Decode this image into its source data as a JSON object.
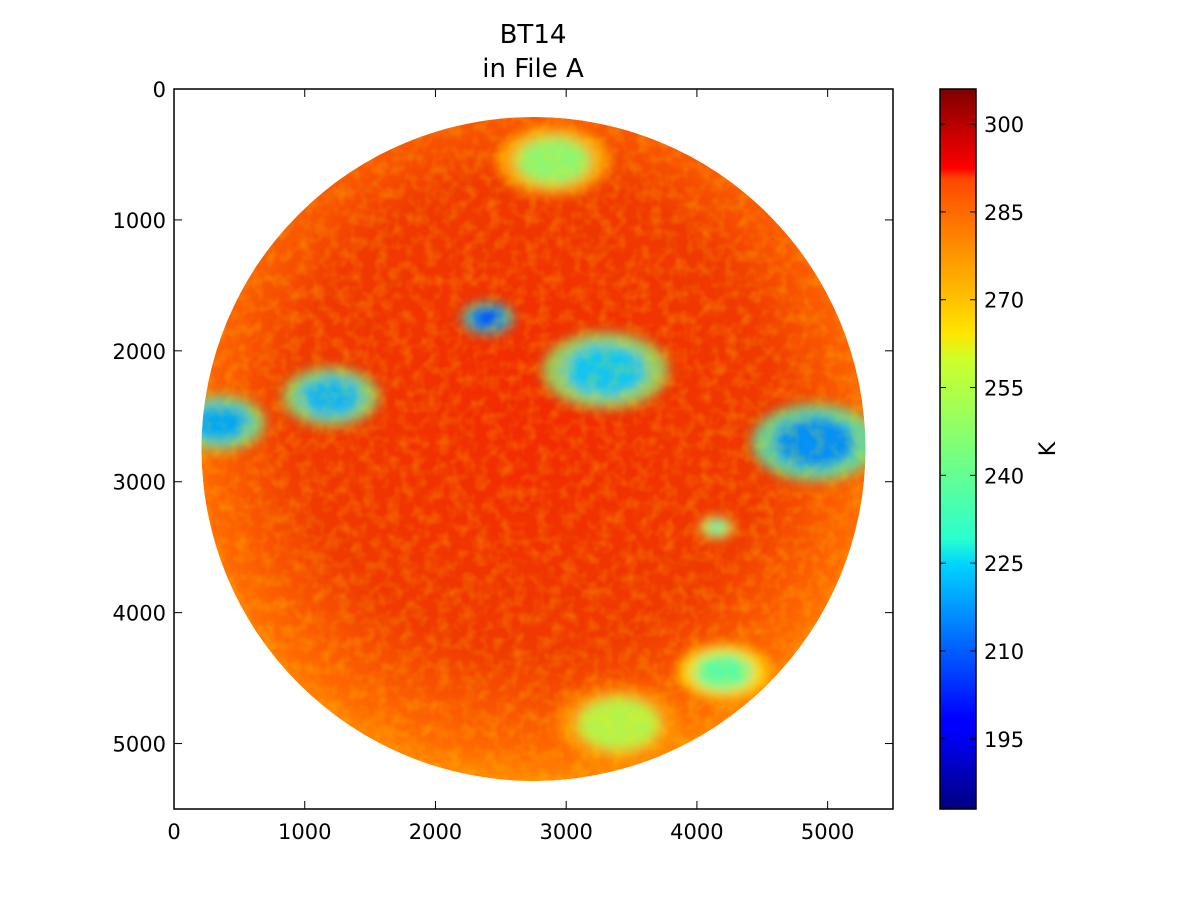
{
  "chart_data": {
    "type": "heatmap",
    "title": "BT14\nin File A",
    "title_lines": [
      "BT14",
      "in File A"
    ],
    "x": {
      "lim": [
        0,
        5500
      ],
      "ticks": [
        0,
        1000,
        2000,
        3000,
        4000,
        5000
      ],
      "tick_labels": [
        "0",
        "1000",
        "2000",
        "3000",
        "4000",
        "5000"
      ],
      "label": ""
    },
    "y": {
      "lim": [
        5500,
        0
      ],
      "inverted": true,
      "ticks": [
        0,
        1000,
        2000,
        3000,
        4000,
        5000
      ],
      "tick_labels": [
        "0",
        "1000",
        "2000",
        "3000",
        "4000",
        "5000"
      ],
      "label": ""
    },
    "disk": {
      "center": [
        2750,
        2750
      ],
      "radius": 2540
    },
    "colorbar": {
      "label": "K",
      "range": [
        183,
        306
      ],
      "ticks": [
        195,
        210,
        225,
        240,
        255,
        270,
        285,
        300
      ],
      "tick_labels": [
        "195",
        "210",
        "225",
        "240",
        "255",
        "270",
        "285",
        "300"
      ],
      "colormap": "jet",
      "placement": "right"
    },
    "features": [
      {
        "name": "storm-1",
        "center": [
          2400,
          1750
        ],
        "radius": 170,
        "value": 205
      },
      {
        "name": "storm-2",
        "center": [
          4150,
          3350
        ],
        "radius": 120,
        "value": 235
      },
      {
        "name": "itcz-band-1",
        "center": [
          1200,
          2350
        ],
        "radius": 320,
        "value": 220
      },
      {
        "name": "itcz-band-2",
        "center": [
          3300,
          2150
        ],
        "radius": 420,
        "value": 222
      },
      {
        "name": "east-cluster",
        "center": [
          4900,
          2700
        ],
        "radius": 420,
        "value": 215
      },
      {
        "name": "southeast-cloud",
        "center": [
          4200,
          4450
        ],
        "radius": 300,
        "value": 238
      },
      {
        "name": "south-cloud",
        "center": [
          3400,
          4850
        ],
        "radius": 420,
        "value": 250
      },
      {
        "name": "north-cloud",
        "center": [
          2900,
          550
        ],
        "radius": 380,
        "value": 245
      },
      {
        "name": "west-cloud",
        "center": [
          350,
          2550
        ],
        "radius": 300,
        "value": 218
      }
    ],
    "grid": false
  }
}
